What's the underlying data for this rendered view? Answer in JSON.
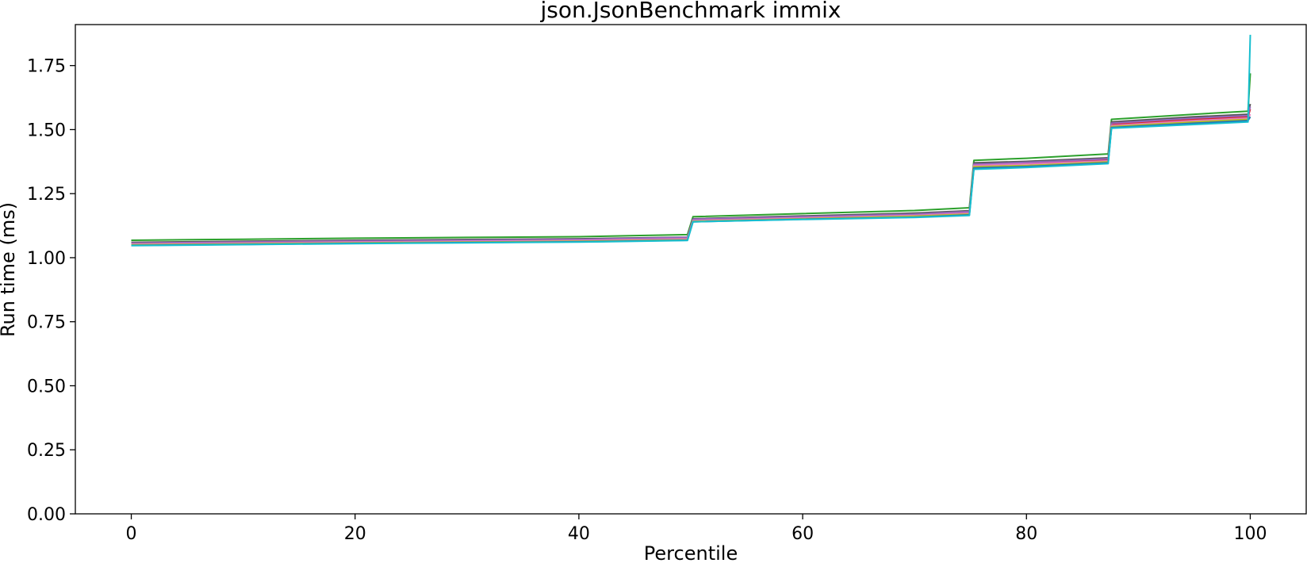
{
  "chart_data": {
    "type": "line",
    "title": "json.JsonBenchmark immix",
    "xlabel": "Percentile",
    "ylabel": "Run time (ms)",
    "xlim": [
      -5,
      105
    ],
    "ylim": [
      0,
      1.91
    ],
    "xticks": [
      0,
      20,
      40,
      60,
      80,
      100
    ],
    "xtick_labels": [
      "0",
      "20",
      "40",
      "60",
      "80",
      "100"
    ],
    "yticks": [
      0,
      0.25,
      0.5,
      0.75,
      1.0,
      1.25,
      1.5,
      1.75
    ],
    "ytick_labels": [
      "0.00",
      "0.25",
      "0.50",
      "0.75",
      "1.00",
      "1.25",
      "1.50",
      "1.75"
    ],
    "grid": false,
    "legend": "none",
    "series": [
      {
        "color": "#2ca02c",
        "x": [
          0,
          10,
          20,
          30,
          40,
          49.7,
          50.2,
          60,
          70,
          74.9,
          75.3,
          80,
          87.3,
          87.6,
          95,
          99.8,
          100
        ],
        "y": [
          1.068,
          1.072,
          1.076,
          1.079,
          1.082,
          1.09,
          1.16,
          1.172,
          1.184,
          1.195,
          1.38,
          1.388,
          1.405,
          1.54,
          1.56,
          1.572,
          1.72
        ]
      },
      {
        "color": "#555555",
        "x": [
          0,
          10,
          20,
          30,
          40,
          49.7,
          50.2,
          60,
          70,
          74.9,
          75.3,
          80,
          87.3,
          87.6,
          95,
          99.8,
          100
        ],
        "y": [
          1.06,
          1.064,
          1.068,
          1.071,
          1.074,
          1.08,
          1.152,
          1.163,
          1.174,
          1.183,
          1.37,
          1.376,
          1.39,
          1.53,
          1.55,
          1.56,
          1.6
        ]
      },
      {
        "color": "#d62728",
        "x": [
          0,
          10,
          20,
          30,
          40,
          49.7,
          50.2,
          60,
          70,
          74.9,
          75.3,
          80,
          87.3,
          87.6,
          95,
          99.8,
          100
        ],
        "y": [
          1.055,
          1.06,
          1.064,
          1.067,
          1.07,
          1.077,
          1.148,
          1.158,
          1.168,
          1.177,
          1.362,
          1.368,
          1.382,
          1.52,
          1.54,
          1.55,
          1.58
        ]
      },
      {
        "color": "#9467bd",
        "x": [
          0,
          10,
          20,
          30,
          40,
          49.7,
          50.2,
          60,
          70,
          74.9,
          75.3,
          80,
          87.3,
          87.6,
          95,
          99.8,
          100
        ],
        "y": [
          1.057,
          1.061,
          1.065,
          1.068,
          1.071,
          1.079,
          1.15,
          1.16,
          1.17,
          1.18,
          1.365,
          1.372,
          1.386,
          1.525,
          1.545,
          1.555,
          1.59
        ]
      },
      {
        "color": "#e377c2",
        "x": [
          0,
          10,
          20,
          30,
          40,
          49.7,
          50.2,
          60,
          70,
          74.9,
          75.3,
          80,
          87.3,
          87.6,
          95,
          99.8,
          100
        ],
        "y": [
          1.053,
          1.057,
          1.061,
          1.064,
          1.067,
          1.074,
          1.145,
          1.155,
          1.165,
          1.174,
          1.36,
          1.366,
          1.378,
          1.516,
          1.535,
          1.545,
          1.56
        ]
      },
      {
        "color": "#bcbd22",
        "x": [
          0,
          10,
          20,
          30,
          40,
          49.7,
          50.2,
          60,
          70,
          74.9,
          75.3,
          80,
          87.3,
          87.6,
          95,
          99.8,
          100
        ],
        "y": [
          1.05,
          1.054,
          1.058,
          1.061,
          1.064,
          1.07,
          1.142,
          1.152,
          1.162,
          1.17,
          1.355,
          1.36,
          1.374,
          1.512,
          1.53,
          1.54,
          1.55
        ]
      },
      {
        "color": "#1f77b4",
        "x": [
          0,
          10,
          20,
          30,
          40,
          49.7,
          50.2,
          60,
          70,
          74.9,
          75.3,
          80,
          87.3,
          87.6,
          95,
          99.8,
          100
        ],
        "y": [
          1.048,
          1.052,
          1.056,
          1.059,
          1.062,
          1.068,
          1.14,
          1.15,
          1.158,
          1.167,
          1.35,
          1.356,
          1.37,
          1.508,
          1.525,
          1.535,
          1.55
        ]
      },
      {
        "color": "#17becf",
        "x": [
          0,
          10,
          20,
          30,
          40,
          49.7,
          50.2,
          60,
          70,
          74.9,
          75.3,
          80,
          87.3,
          87.6,
          95,
          99.8,
          100
        ],
        "y": [
          1.047,
          1.051,
          1.055,
          1.058,
          1.061,
          1.067,
          1.14,
          1.149,
          1.157,
          1.165,
          1.345,
          1.352,
          1.367,
          1.505,
          1.52,
          1.53,
          1.87
        ]
      }
    ]
  }
}
